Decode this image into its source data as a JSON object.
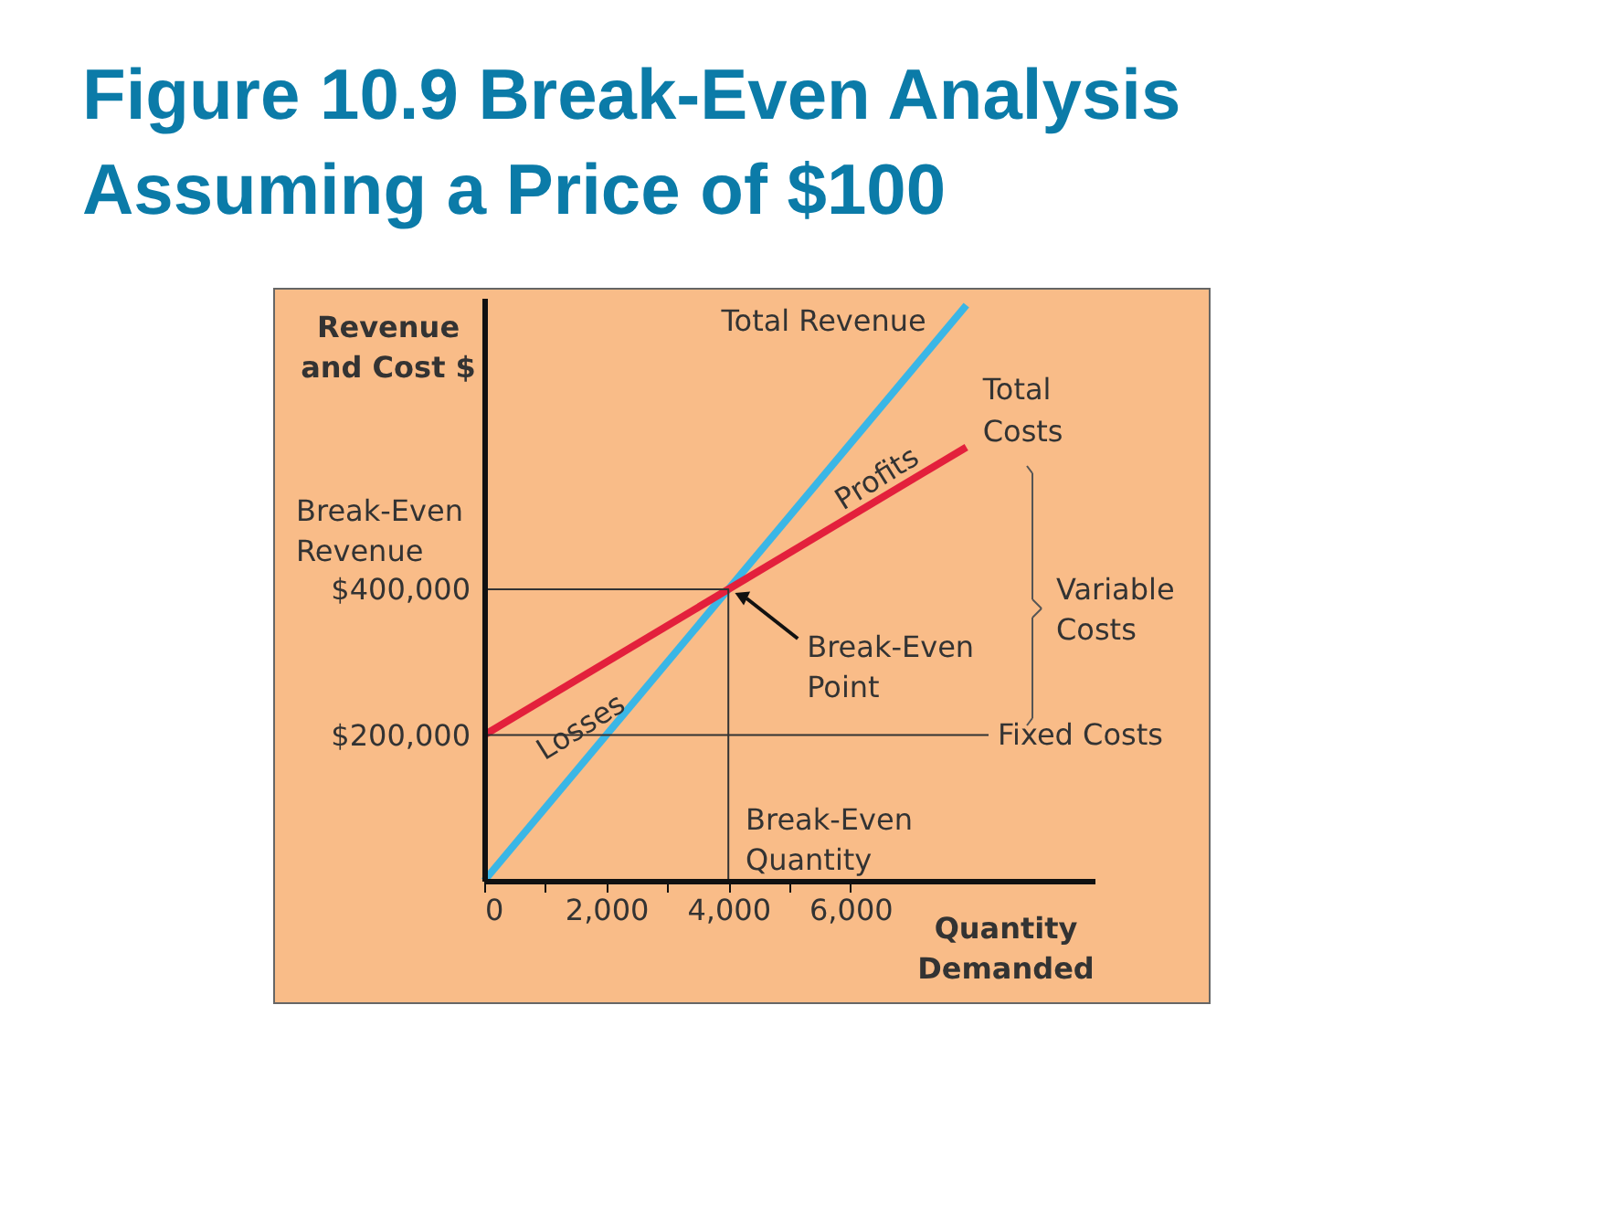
{
  "chart_data": {
    "type": "line",
    "title": "Figure 10.9 Break-Even Analysis Assuming a Price of $100",
    "xlabel": "Quantity Demanded",
    "ylabel": "Revenue and Cost $",
    "series": [
      {
        "name": "Total Revenue",
        "color": "#3ab6e6",
        "x": [
          0,
          7900
        ],
        "values": [
          0,
          790000
        ]
      },
      {
        "name": "Total Costs",
        "color": "#e3203c",
        "x": [
          0,
          7900
        ],
        "values": [
          200000,
          595000
        ]
      },
      {
        "color": "#333333",
        "x": [
          0,
          4000,
          4000
        ],
        "values": [
          400000,
          400000,
          0
        ]
      }
    ],
    "xlim": [
      0,
      10000
    ],
    "ylim": [
      0,
      800000
    ],
    "xticks": [
      0,
      {
        "value": 1000,
        "label": null
      },
      {
        "value": 2000,
        "label": "2,000"
      },
      {
        "value": 3000,
        "label": null
      },
      {
        "value": 4000,
        "label": "4,000"
      },
      {
        "value": 5000,
        "label": null
      },
      {
        "value": 6000,
        "label": "6,000"
      }
    ],
    "yticks": [
      {
        "value": 200000,
        "label": "$200,000"
      },
      {
        "value": 400000,
        "label": "$400,000"
      }
    ],
    "ref_lines": [
      {
        "axis": "y",
        "value": 200000,
        "label": "Fixed Costs",
        "color": "#333333"
      }
    ],
    "annotations": [
      "Break-Even Revenue",
      {
        "text": "Break-Even Point",
        "x": 4000,
        "y": 400000
      },
      "Break-Even Quantity",
      "Profits",
      "Losses",
      "Variable Costs"
    ],
    "grid": false,
    "legend": false,
    "marker": "none",
    "line_style": "solid"
  }
}
